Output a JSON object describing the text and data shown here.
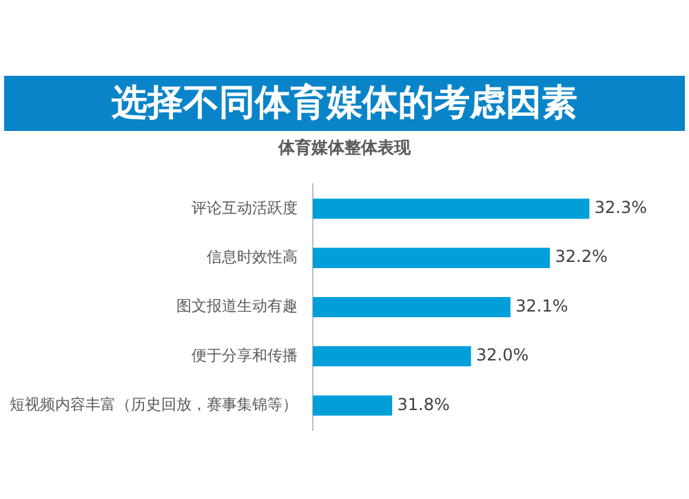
{
  "chart_data": {
    "type": "bar",
    "orientation": "horizontal",
    "title": "选择不同体育媒体的考虑因素",
    "subtitle": "体育媒体整体表现",
    "categories": [
      "评论互动活跃度",
      "信息时效性高",
      "图文报道生动有趣",
      "便于分享和传播",
      "短视频内容丰富（历史回放，赛事集锦等）"
    ],
    "values": [
      32.3,
      32.2,
      32.1,
      32.0,
      31.8
    ],
    "value_labels": [
      "32.3%",
      "32.2%",
      "32.1%",
      "32.0%",
      "31.8%"
    ],
    "color": "#009fda",
    "tick_labels": "y",
    "grid": false,
    "legend": false
  }
}
